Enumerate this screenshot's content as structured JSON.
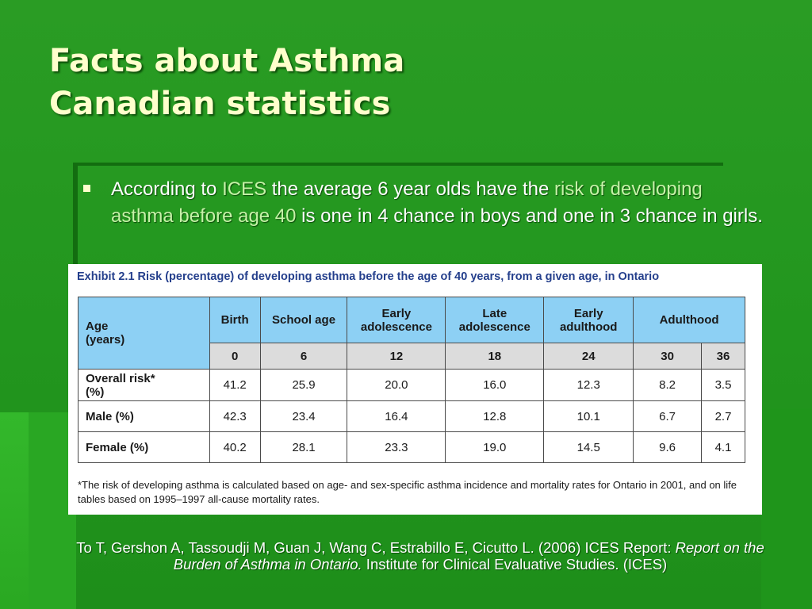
{
  "slide": {
    "title_line1": "Facts about Asthma",
    "title_line2": "Canadian statistics"
  },
  "bullet": {
    "part1": "According to ",
    "part2": "ICES",
    "part3": " the average 6 year olds have the ",
    "part4": "risk of developing asthma before age 40",
    "part5": " is one in 4 chance in boys and one in 3 chance in girls."
  },
  "exhibit": {
    "title": "Exhibit 2.1 Risk (percentage) of developing asthma before the age of 40 years, from a given age, in Ontario",
    "age_label": "Age",
    "age_unit": "(years)",
    "stage_headers": [
      "Birth",
      "School age",
      "Early",
      "adolescence",
      "Late",
      "adolescence",
      "Early",
      "adulthood",
      "Adulthood"
    ],
    "ages": [
      "0",
      "6",
      "12",
      "18",
      "24",
      "30",
      "36"
    ],
    "rows": [
      {
        "label_line1": "Overall risk*",
        "label_line2": "(%)",
        "values": [
          "41.2",
          "25.9",
          "20.0",
          "16.0",
          "12.3",
          "8.2",
          "3.5"
        ]
      },
      {
        "label_line1": "Male (%)",
        "label_line2": "",
        "values": [
          "42.3",
          "23.4",
          "16.4",
          "12.8",
          "10.1",
          "6.7",
          "2.7"
        ]
      },
      {
        "label_line1": "Female (%)",
        "label_line2": "",
        "values": [
          "40.2",
          "28.1",
          "23.3",
          "19.0",
          "14.5",
          "9.6",
          "4.1"
        ]
      }
    ],
    "footnote": "*The risk of developing asthma is calculated based on age- and sex-specific asthma incidence and mortality rates for Ontario in 2001, and on life tables based on 1995–1997 all-cause mortality rates."
  },
  "citation": {
    "part1": "To T, Gershon A, Tassoudji M, Guan J, Wang C, Estrabillo E, Cicutto L. (2006) ICES Report: ",
    "part2": "Report on the Burden of Asthma in Ontario.",
    "part3": " Institute for Clinical Evaluative Studies. (ICES)"
  },
  "colors": {
    "background": "#22961e",
    "title": "#ffffcc",
    "highlight": "#c6f2a8",
    "table_header": "#8dd0f4",
    "table_subheader": "#dcdcdc",
    "exhibit_title": "#243f8c"
  }
}
